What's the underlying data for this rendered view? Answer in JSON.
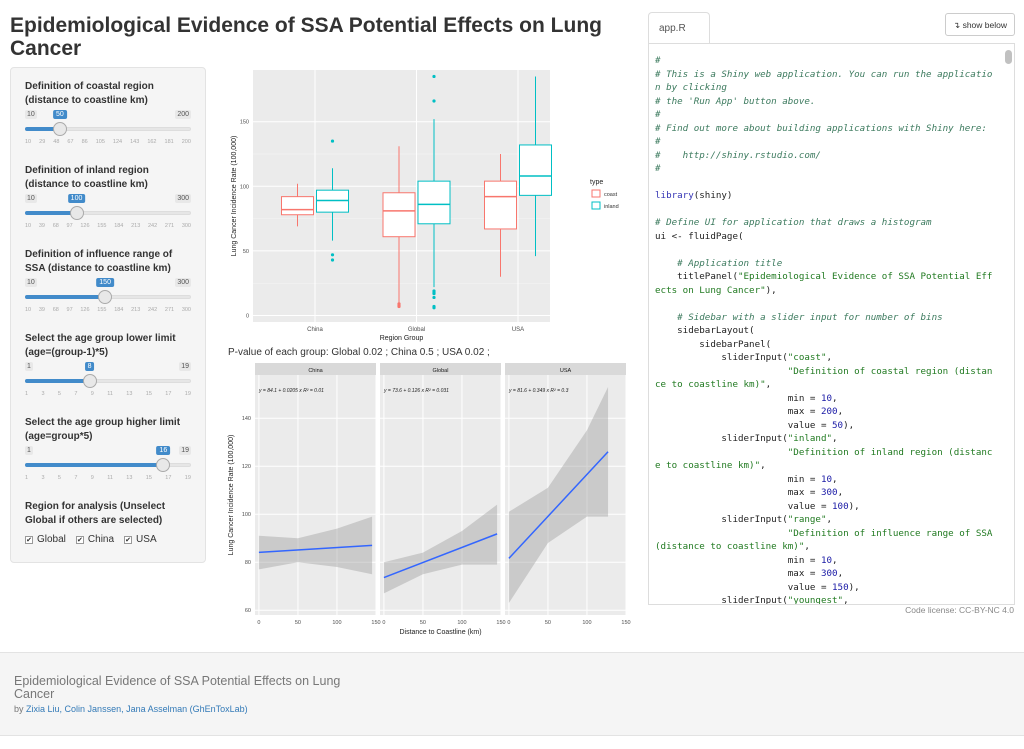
{
  "title": "Epidemiological Evidence of SSA Potential Effects on Lung Cancer",
  "sliders": [
    {
      "label": "Definition of coastal region (distance to coastline km)",
      "min": 10,
      "max": 200,
      "value": 50,
      "ticks": [
        "10",
        "29",
        "48",
        "67",
        "86",
        "105",
        "124",
        "143",
        "162",
        "181",
        "200"
      ]
    },
    {
      "label": "Definition of inland region (distance to coastline km)",
      "min": 10,
      "max": 300,
      "value": 100,
      "ticks": [
        "10",
        "39",
        "68",
        "97",
        "126",
        "155",
        "184",
        "213",
        "242",
        "271",
        "300"
      ]
    },
    {
      "label": "Definition of influence range of SSA (distance to coastline km)",
      "min": 10,
      "max": 300,
      "value": 150,
      "ticks": [
        "10",
        "39",
        "68",
        "97",
        "126",
        "155",
        "184",
        "213",
        "242",
        "271",
        "300"
      ]
    },
    {
      "label": "Select the age group lower limit (age=(group-1)*5)",
      "min": 1,
      "max": 19,
      "value": 8,
      "ticks": [
        "1",
        "3",
        "5",
        "7",
        "9",
        "11",
        "13",
        "15",
        "17",
        "19"
      ]
    },
    {
      "label": "Select the age group higher limit (age=group*5)",
      "min": 1,
      "max": 19,
      "value": 16,
      "ticks": [
        "1",
        "3",
        "5",
        "7",
        "9",
        "11",
        "13",
        "15",
        "17",
        "19"
      ]
    }
  ],
  "regions": {
    "label": "Region for analysis (Unselect Global if others are selected)",
    "options": [
      {
        "label": "Global",
        "checked": true
      },
      {
        "label": "China",
        "checked": true
      },
      {
        "label": "USA",
        "checked": true
      }
    ]
  },
  "pvalue_text": "P-value of each group: Global 0.02 ; China 0.5 ; USA 0.02 ;",
  "chart_data": [
    {
      "type": "box",
      "xlabel": "Region Group",
      "ylabel": "Lung Cancer Incidence Rate (100,000)",
      "ylim": [
        -5,
        190
      ],
      "yticks": [
        0,
        50,
        100,
        150
      ],
      "categories": [
        "China",
        "Global",
        "USA"
      ],
      "legend": {
        "title": "type",
        "position": "right",
        "entries": [
          {
            "name": "coast",
            "color": "#F8766D"
          },
          {
            "name": "inland",
            "color": "#00BFC4"
          }
        ]
      },
      "series": [
        {
          "name": "coast",
          "color": "#F8766D",
          "boxes": [
            {
              "min": 69,
              "q1": 78,
              "median": 82,
              "q3": 92,
              "max": 102,
              "outliers": []
            },
            {
              "min": 10,
              "q1": 61,
              "median": 81,
              "q3": 95,
              "max": 131,
              "outliers": [
                7,
                8,
                9
              ]
            },
            {
              "min": 30,
              "q1": 67,
              "median": 92,
              "q3": 104,
              "max": 125,
              "outliers": []
            }
          ]
        },
        {
          "name": "inland",
          "color": "#00BFC4",
          "boxes": [
            {
              "min": 58,
              "q1": 80,
              "median": 89,
              "q3": 97,
              "max": 114,
              "outliers": [
                135,
                47,
                43
              ]
            },
            {
              "min": 22,
              "q1": 71,
              "median": 86,
              "q3": 104,
              "max": 152,
              "outliers": [
                185,
                166,
                19,
                18,
                17,
                14,
                7,
                6
              ]
            },
            {
              "min": 46,
              "q1": 93,
              "median": 108,
              "q3": 132,
              "max": 185,
              "outliers": []
            }
          ]
        }
      ]
    },
    {
      "type": "line",
      "xlabel": "Distance to Coastline (km)",
      "ylabel": "Lung Cancer Incidence Rate (100,000)",
      "ylim": [
        58,
        158
      ],
      "xlim": [
        -5,
        150
      ],
      "yticks": [
        60,
        80,
        100,
        120,
        140
      ],
      "xticks": [
        0,
        50,
        100,
        150
      ],
      "facets": [
        {
          "name": "China",
          "equation": "y = 84.1 + 0.0205 x   R² = 0.01",
          "line": [
            [
              0,
              84.1
            ],
            [
              145,
              87
            ]
          ],
          "band": [
            [
              0,
              77,
              91
            ],
            [
              50,
              80,
              90
            ],
            [
              100,
              78,
              94
            ],
            [
              145,
              75,
              99
            ]
          ]
        },
        {
          "name": "Global",
          "equation": "y = 73.6 + 0.126 x   R² = 0.031",
          "line": [
            [
              0,
              73.6
            ],
            [
              145,
              91.8
            ]
          ],
          "band": [
            [
              0,
              67,
              80
            ],
            [
              50,
              75,
              84
            ],
            [
              100,
              79,
              93
            ],
            [
              145,
              79,
              104
            ]
          ]
        },
        {
          "name": "USA",
          "equation": "y = 81.6 + 0.349 x   R² = 0.3",
          "line": [
            [
              0,
              81.6
            ],
            [
              127,
              126
            ]
          ],
          "band": [
            [
              0,
              63,
              101
            ],
            [
              50,
              88,
              111
            ],
            [
              100,
              99,
              135
            ],
            [
              127,
              99,
              153
            ]
          ]
        }
      ],
      "line_color": "#3366FF"
    }
  ],
  "code_panel": {
    "tab": "app.R",
    "show_below": "show below",
    "license": "Code license: CC-BY-NC 4.0",
    "lines": [
      [
        [
          "com",
          "#"
        ]
      ],
      [
        [
          "com",
          "# This is a Shiny web application. You can run the applicatio"
        ]
      ],
      [
        [
          "com",
          "n by clicking"
        ]
      ],
      [
        [
          "com",
          "# the 'Run App' button above."
        ]
      ],
      [
        [
          "com",
          "#"
        ]
      ],
      [
        [
          "com",
          "# Find out more about building applications with Shiny here:"
        ]
      ],
      [
        [
          "com",
          "#"
        ]
      ],
      [
        [
          "com",
          "#    http://shiny.rstudio.com/"
        ]
      ],
      [
        [
          "com",
          "#"
        ]
      ],
      [
        [
          "pl",
          ""
        ]
      ],
      [
        [
          "kw",
          "library"
        ],
        [
          "pl",
          "(shiny)"
        ]
      ],
      [
        [
          "pl",
          ""
        ]
      ],
      [
        [
          "com",
          "# Define UI for application that draws a histogram"
        ]
      ],
      [
        [
          "pl",
          "ui <- fluidPage("
        ]
      ],
      [
        [
          "pl",
          ""
        ]
      ],
      [
        [
          "com",
          "    # Application title"
        ]
      ],
      [
        [
          "pl",
          "    titlePanel("
        ],
        [
          "str",
          "\"Epidemiological Evidence of SSA Potential Eff"
        ]
      ],
      [
        [
          "str",
          "ects on Lung Cancer\""
        ],
        [
          "pl",
          "),"
        ]
      ],
      [
        [
          "pl",
          ""
        ]
      ],
      [
        [
          "com",
          "    # Sidebar with a slider input for number of bins"
        ]
      ],
      [
        [
          "pl",
          "    sidebarLayout("
        ]
      ],
      [
        [
          "pl",
          "        sidebarPanel("
        ]
      ],
      [
        [
          "pl",
          "            sliderInput("
        ],
        [
          "str",
          "\"coast\""
        ],
        [
          "pl",
          ","
        ]
      ],
      [
        [
          "str",
          "                        \"Definition of coastal region (distan"
        ]
      ],
      [
        [
          "str",
          "ce to coastline km)\""
        ],
        [
          "pl",
          ","
        ]
      ],
      [
        [
          "pl",
          "                        min = "
        ],
        [
          "num",
          "10"
        ],
        [
          "pl",
          ","
        ]
      ],
      [
        [
          "pl",
          "                        max = "
        ],
        [
          "num",
          "200"
        ],
        [
          "pl",
          ","
        ]
      ],
      [
        [
          "pl",
          "                        value = "
        ],
        [
          "num",
          "50"
        ],
        [
          "pl",
          "),"
        ]
      ],
      [
        [
          "pl",
          "            sliderInput("
        ],
        [
          "str",
          "\"inland\""
        ],
        [
          "pl",
          ","
        ]
      ],
      [
        [
          "str",
          "                        \"Definition of inland region (distanc"
        ]
      ],
      [
        [
          "str",
          "e to coastline km)\""
        ],
        [
          "pl",
          ","
        ]
      ],
      [
        [
          "pl",
          "                        min = "
        ],
        [
          "num",
          "10"
        ],
        [
          "pl",
          ","
        ]
      ],
      [
        [
          "pl",
          "                        max = "
        ],
        [
          "num",
          "300"
        ],
        [
          "pl",
          ","
        ]
      ],
      [
        [
          "pl",
          "                        value = "
        ],
        [
          "num",
          "100"
        ],
        [
          "pl",
          "),"
        ]
      ],
      [
        [
          "pl",
          "            sliderInput("
        ],
        [
          "str",
          "\"range\""
        ],
        [
          "pl",
          ","
        ]
      ],
      [
        [
          "str",
          "                        \"Definition of influence range of SSA"
        ]
      ],
      [
        [
          "str",
          "(distance to coastline km)\""
        ],
        [
          "pl",
          ","
        ]
      ],
      [
        [
          "pl",
          "                        min = "
        ],
        [
          "num",
          "10"
        ],
        [
          "pl",
          ","
        ]
      ],
      [
        [
          "pl",
          "                        max = "
        ],
        [
          "num",
          "300"
        ],
        [
          "pl",
          ","
        ]
      ],
      [
        [
          "pl",
          "                        value = "
        ],
        [
          "num",
          "150"
        ],
        [
          "pl",
          "),"
        ]
      ],
      [
        [
          "pl",
          "            sliderInput("
        ],
        [
          "str",
          "\"youngest\""
        ],
        [
          "pl",
          ","
        ]
      ]
    ]
  },
  "footer": {
    "title": "Epidemiological Evidence of SSA Potential Effects on Lung Cancer",
    "by": "by",
    "authors": "Zixia Liu, Colin Janssen, Jana Asselman (GhEnToxLab)"
  }
}
